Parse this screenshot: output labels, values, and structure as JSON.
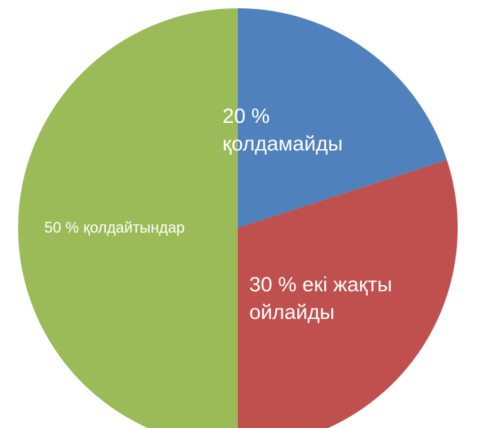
{
  "chart_data": {
    "type": "pie",
    "categories": [
      "қолдамайды",
      "екі жақты ойлайды",
      "қолдайтындар"
    ],
    "values": [
      20,
      30,
      50
    ],
    "value_labels": [
      "20 %",
      "30 %",
      "50 %"
    ],
    "colors": [
      "#4f81bd",
      "#c0504d",
      "#9bbb59"
    ]
  }
}
